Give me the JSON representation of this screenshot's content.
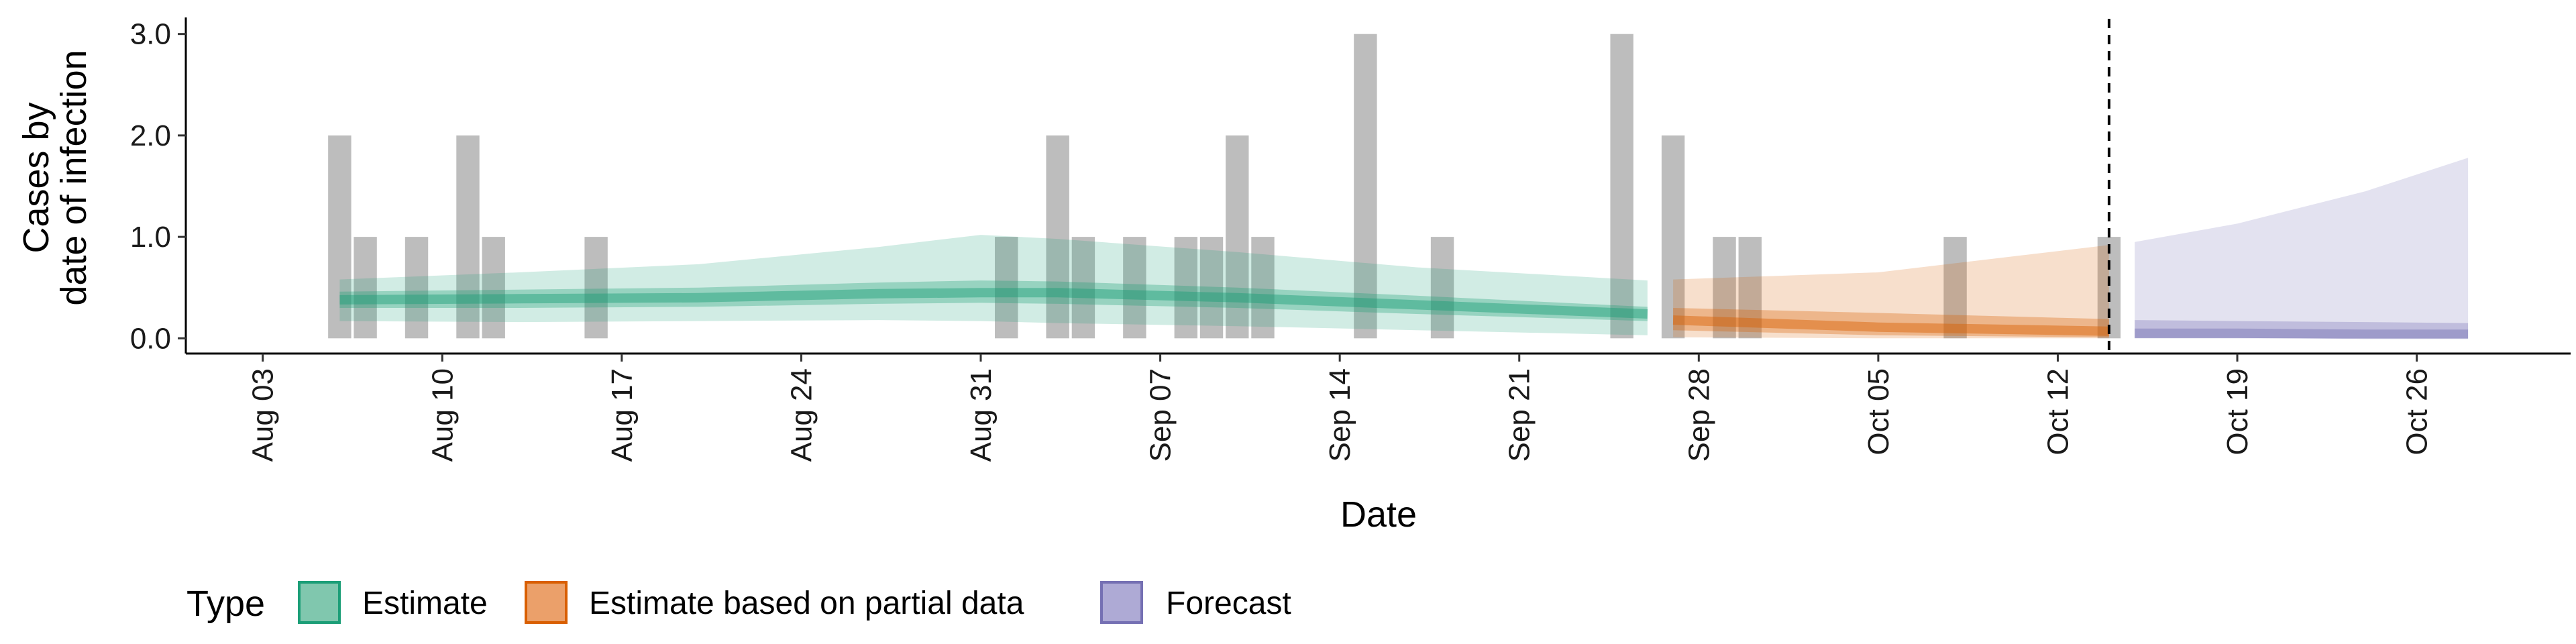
{
  "chart_data": {
    "type": "area",
    "xlabel": "Date",
    "ylabel_lines": [
      "Cases by",
      "date of infection"
    ],
    "ylim": [
      -0.15,
      3.15
    ],
    "y_ticks": [
      0,
      1,
      2,
      3
    ],
    "y_tick_labels": [
      "0.0",
      "1.0",
      "2.0",
      "3.0"
    ],
    "x_range": [
      "2020-07-31",
      "2020-11-01"
    ],
    "x_ticks": [
      "2020-08-03",
      "2020-08-10",
      "2020-08-17",
      "2020-08-24",
      "2020-08-31",
      "2020-09-07",
      "2020-09-14",
      "2020-09-21",
      "2020-09-28",
      "2020-10-05",
      "2020-10-12",
      "2020-10-19",
      "2020-10-26"
    ],
    "x_tick_labels": [
      "Aug 03",
      "Aug 10",
      "Aug 17",
      "Aug 24",
      "Aug 31",
      "Sep 07",
      "Sep 14",
      "Sep 21",
      "Sep 28",
      "Oct 05",
      "Oct 12",
      "Oct 19",
      "Oct 26"
    ],
    "vline_date": "2020-10-14",
    "reported_cases": [
      {
        "date": "2020-08-06",
        "value": 2
      },
      {
        "date": "2020-08-07",
        "value": 1
      },
      {
        "date": "2020-08-09",
        "value": 1
      },
      {
        "date": "2020-08-11",
        "value": 2
      },
      {
        "date": "2020-08-12",
        "value": 1
      },
      {
        "date": "2020-08-16",
        "value": 1
      },
      {
        "date": "2020-09-01",
        "value": 1
      },
      {
        "date": "2020-09-03",
        "value": 2
      },
      {
        "date": "2020-09-04",
        "value": 1
      },
      {
        "date": "2020-09-06",
        "value": 1
      },
      {
        "date": "2020-09-08",
        "value": 1
      },
      {
        "date": "2020-09-09",
        "value": 1
      },
      {
        "date": "2020-09-10",
        "value": 2
      },
      {
        "date": "2020-09-11",
        "value": 1
      },
      {
        "date": "2020-09-15",
        "value": 3
      },
      {
        "date": "2020-09-18",
        "value": 1
      },
      {
        "date": "2020-09-25",
        "value": 3
      },
      {
        "date": "2020-09-27",
        "value": 2
      },
      {
        "date": "2020-09-29",
        "value": 1
      },
      {
        "date": "2020-09-30",
        "value": 1
      },
      {
        "date": "2020-10-08",
        "value": 1
      },
      {
        "date": "2020-10-14",
        "value": 1
      }
    ],
    "series": [
      {
        "name": "Estimate",
        "color": "#1b9e77",
        "points": [
          {
            "date": "2020-08-06",
            "median": 0.38,
            "lo50": 0.3,
            "hi50": 0.46,
            "lo90": 0.17,
            "hi90": 0.58
          },
          {
            "date": "2020-08-13",
            "median": 0.39,
            "lo50": 0.3,
            "hi50": 0.48,
            "lo90": 0.16,
            "hi90": 0.65
          },
          {
            "date": "2020-08-20",
            "median": 0.4,
            "lo50": 0.31,
            "hi50": 0.5,
            "lo90": 0.17,
            "hi90": 0.73
          },
          {
            "date": "2020-08-27",
            "median": 0.44,
            "lo50": 0.34,
            "hi50": 0.55,
            "lo90": 0.18,
            "hi90": 0.9
          },
          {
            "date": "2020-08-31",
            "median": 0.45,
            "lo50": 0.35,
            "hi50": 0.57,
            "lo90": 0.17,
            "hi90": 1.02
          },
          {
            "date": "2020-09-03",
            "median": 0.45,
            "lo50": 0.34,
            "hi50": 0.56,
            "lo90": 0.15,
            "hi90": 0.98
          },
          {
            "date": "2020-09-10",
            "median": 0.4,
            "lo50": 0.3,
            "hi50": 0.5,
            "lo90": 0.12,
            "hi90": 0.85
          },
          {
            "date": "2020-09-17",
            "median": 0.33,
            "lo50": 0.24,
            "hi50": 0.42,
            "lo90": 0.08,
            "hi90": 0.7
          },
          {
            "date": "2020-09-26",
            "median": 0.24,
            "lo50": 0.17,
            "hi50": 0.31,
            "lo90": 0.03,
            "hi90": 0.57
          }
        ]
      },
      {
        "name": "Estimate based on partial data",
        "color": "#d95f02",
        "points": [
          {
            "date": "2020-09-27",
            "median": 0.18,
            "lo50": 0.08,
            "hi50": 0.3,
            "lo90": 0.01,
            "hi90": 0.58
          },
          {
            "date": "2020-10-05",
            "median": 0.11,
            "lo50": 0.03,
            "hi50": 0.25,
            "lo90": 0.0,
            "hi90": 0.65
          },
          {
            "date": "2020-10-14",
            "median": 0.07,
            "lo50": 0.01,
            "hi50": 0.19,
            "lo90": 0.0,
            "hi90": 0.92
          }
        ]
      },
      {
        "name": "Forecast",
        "color": "#7570b3",
        "points": [
          {
            "date": "2020-10-15",
            "median": 0.05,
            "lo50": 0.0,
            "hi50": 0.18,
            "lo90": 0.0,
            "hi90": 0.95
          },
          {
            "date": "2020-10-19",
            "median": 0.05,
            "lo50": 0.0,
            "hi50": 0.17,
            "lo90": 0.0,
            "hi90": 1.13
          },
          {
            "date": "2020-10-24",
            "median": 0.04,
            "lo50": 0.0,
            "hi50": 0.16,
            "lo90": 0.0,
            "hi90": 1.45
          },
          {
            "date": "2020-10-28",
            "median": 0.04,
            "lo50": 0.0,
            "hi50": 0.15,
            "lo90": 0.0,
            "hi90": 1.78
          }
        ]
      }
    ],
    "legend": {
      "title": "Type",
      "position": "bottom",
      "items": [
        {
          "label": "Estimate",
          "fill": "#80c7ae",
          "stroke": "#1b9e77"
        },
        {
          "label": "Estimate based on partial data",
          "fill": "#eba06a",
          "stroke": "#d95f02"
        },
        {
          "label": "Forecast",
          "fill": "#aeaad5",
          "stroke": "#7570b3"
        }
      ]
    },
    "grid": false
  }
}
